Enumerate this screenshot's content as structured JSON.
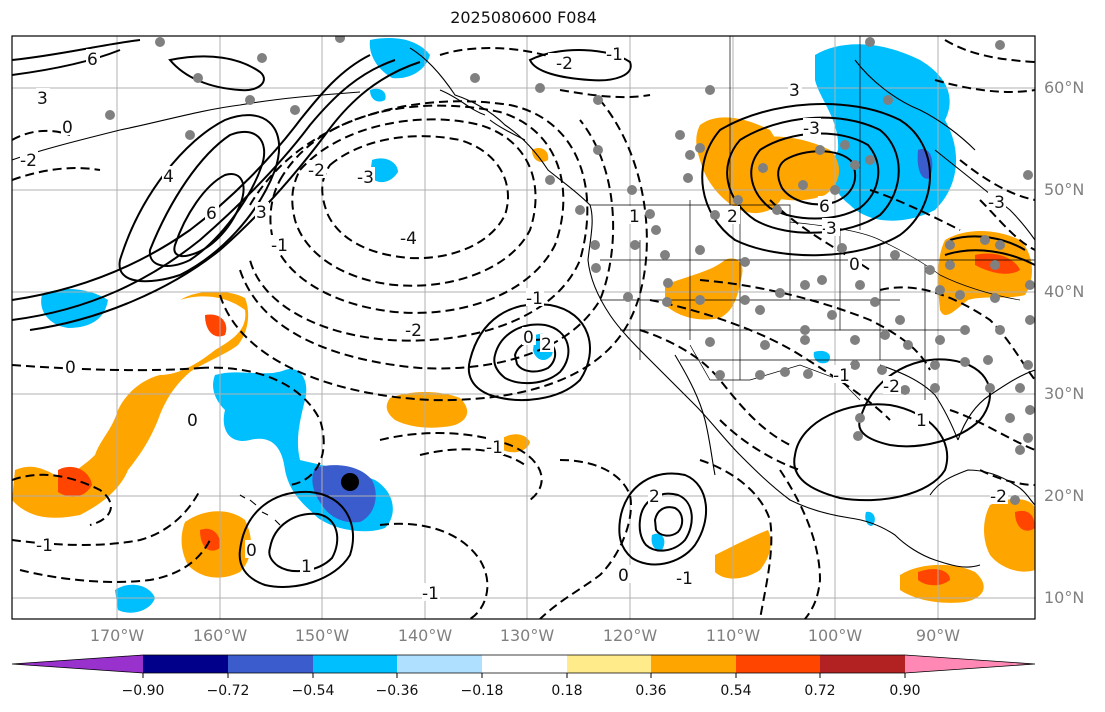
{
  "title": "2025080600 F084",
  "lat_labels": [
    "60°N",
    "50°N",
    "40°N",
    "30°N",
    "20°N",
    "10°N"
  ],
  "lon_labels": [
    "170°W",
    "160°W",
    "150°W",
    "140°W",
    "130°W",
    "120°W",
    "110°W",
    "100°W",
    "90°W"
  ],
  "colorbar": {
    "colors": [
      "#9932cc",
      "#00008b",
      "#3a5ccc",
      "#00bfff",
      "#b0e0ff",
      "#ffffff",
      "#ffeb8a",
      "#ffa500",
      "#ff4500",
      "#b22222",
      "#ff88b4"
    ],
    "labels": [
      "−0.90",
      "−0.72",
      "−0.54",
      "−0.36",
      "−0.18",
      "0.18",
      "0.36",
      "0.54",
      "0.72",
      "0.90"
    ]
  },
  "contour_labels": [
    "6",
    "3",
    "0",
    "-2",
    "4",
    "6",
    "3",
    "-2",
    "-1",
    "-4",
    "-3",
    "-2",
    "0",
    "-2",
    "-1",
    "1",
    "2",
    "3",
    "-3",
    "6",
    "-3",
    "-3",
    "0",
    "-1",
    "0",
    "2",
    "-1",
    "1",
    "-2",
    "0",
    "-1",
    "0",
    "2",
    "1",
    "-2",
    "-1",
    "-1",
    "0",
    "3",
    "-1"
  ],
  "colors": {
    "frame": "#000000",
    "grid": "#b0b0b0",
    "coast": "#000000",
    "station": "#808080",
    "axis_text": "#808080"
  }
}
